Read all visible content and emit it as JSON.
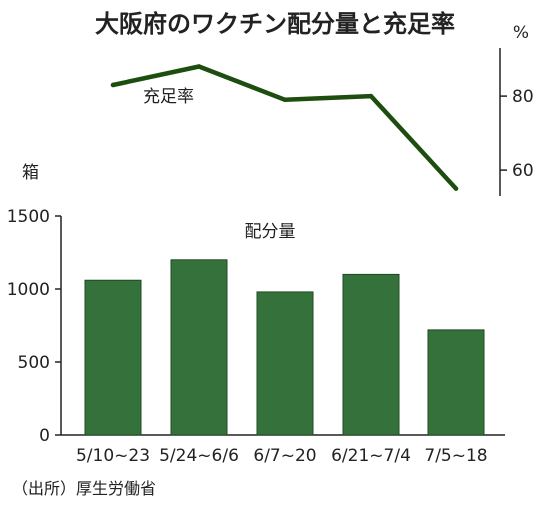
{
  "title": "大阪府のワクチン配分量と充足率",
  "source": "（出所）厚生労働省",
  "chart_data": [
    {
      "type": "line",
      "label": "充足率",
      "unit": "%",
      "categories": [
        "5/10~23",
        "5/24~6/6",
        "6/7~20",
        "6/21~7/4",
        "7/5~18"
      ],
      "values": [
        83,
        88,
        79,
        80,
        55
      ],
      "yticks": [
        60,
        80
      ],
      "ylim": [
        53,
        93
      ],
      "line_color": "#1e4e0f"
    },
    {
      "type": "bar",
      "label": "配分量",
      "unit": "箱",
      "categories": [
        "5/10~23",
        "5/24~6/6",
        "6/7~20",
        "6/21~7/4",
        "7/5~18"
      ],
      "values": [
        1060,
        1200,
        980,
        1100,
        720
      ],
      "yticks": [
        0,
        500,
        1000,
        1500
      ],
      "ylim": [
        0,
        1500
      ],
      "bar_color": "#35713a"
    }
  ]
}
